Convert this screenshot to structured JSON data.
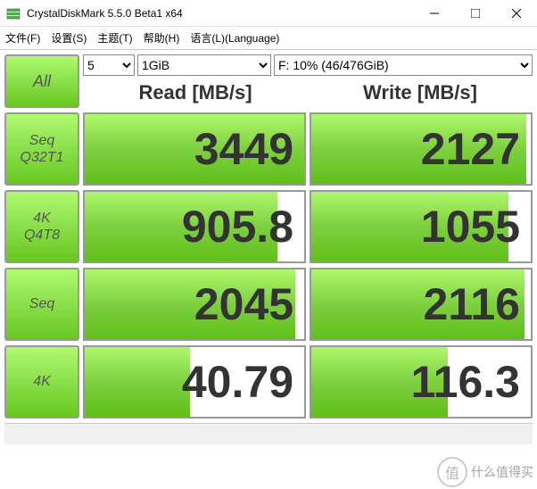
{
  "window": {
    "title": "CrystalDiskMark 5.5.0 Beta1 x64"
  },
  "menu": {
    "file": "文件(F)",
    "settings": "设置(S)",
    "theme": "主题(T)",
    "help": "帮助(H)",
    "language": "语言(L)(Language)"
  },
  "controls": {
    "all_label": "All",
    "count": "5",
    "size": "1GiB",
    "drive": "F: 10% (46/476GiB)"
  },
  "headers": {
    "read": "Read [MB/s]",
    "write": "Write [MB/s]"
  },
  "tests": [
    {
      "label1": "Seq",
      "label2": "Q32T1",
      "read": "3449",
      "write": "2127",
      "read_fill": 100,
      "write_fill": 98
    },
    {
      "label1": "4K",
      "label2": "Q4T8",
      "read": "905.8",
      "write": "1055",
      "read_fill": 88,
      "write_fill": 90
    },
    {
      "label1": "Seq",
      "label2": "",
      "read": "2045",
      "write": "2116",
      "read_fill": 96,
      "write_fill": 97
    },
    {
      "label1": "4K",
      "label2": "",
      "read": "40.79",
      "write": "116.3",
      "read_fill": 48,
      "write_fill": 62
    }
  ],
  "watermark": {
    "char": "值",
    "text": "什么值得买"
  }
}
